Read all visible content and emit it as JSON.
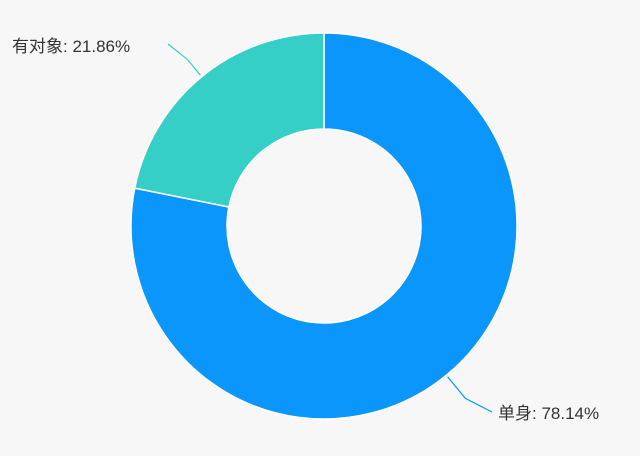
{
  "chart_data": {
    "type": "pie",
    "variant": "donut",
    "categories": [
      "单身",
      "有对象"
    ],
    "values": [
      78.14,
      21.86
    ],
    "labels": [
      "单身: 78.14%",
      "有对象: 21.86%"
    ],
    "colors": [
      "#0a96fb",
      "#35cfc8"
    ],
    "legend": "none",
    "grid": false
  }
}
